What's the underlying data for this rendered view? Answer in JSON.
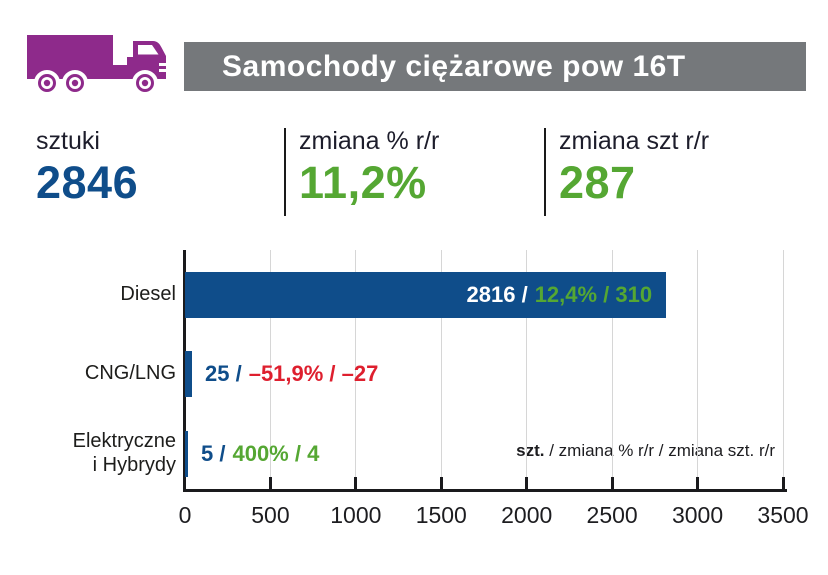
{
  "header": {
    "title": "Samochody ciężarowe pow 16T",
    "bar_color": "#75787b",
    "icon_color": "#8e2a8b"
  },
  "stats": [
    {
      "label": "sztuki",
      "value": "2846",
      "color": "#0f4d8a"
    },
    {
      "label": "zmiana % r/r",
      "value": "11,2%",
      "color": "#55a733"
    },
    {
      "label": "zmiana szt r/r",
      "value": "287",
      "color": "#55a733"
    }
  ],
  "chart_data": {
    "type": "bar",
    "orientation": "horizontal",
    "title": "",
    "xlabel": "",
    "ylabel": "",
    "xlim": [
      0,
      3500
    ],
    "x_ticks": [
      0,
      500,
      1000,
      1500,
      2000,
      2500,
      3000,
      3500
    ],
    "grid": true,
    "categories": [
      "Diesel",
      "CNG/LNG",
      "Elektryczne\ni Hybrydy"
    ],
    "values": [
      2816,
      25,
      5
    ],
    "rows": [
      {
        "category": "Diesel",
        "units": "2816",
        "pct_change": "12,4%",
        "unit_change": "310",
        "trend": "positive",
        "label_position": "inside"
      },
      {
        "category": "CNG/LNG",
        "units": "25",
        "pct_change": "–51,9%",
        "unit_change": "–27",
        "trend": "negative",
        "label_position": "outside"
      },
      {
        "category": "Elektryczne\ni Hybrydy",
        "units": "5",
        "pct_change": "400%",
        "unit_change": "4",
        "trend": "positive",
        "label_position": "outside"
      }
    ],
    "legend_bold_part": "szt.",
    "legend_rest": " / zmiana % r/r / zmiana szt. r/r",
    "bar_color": "#0f4d8a",
    "positive_color": "#55a733",
    "negative_color": "#de1f2e",
    "inside_units_color": "#ffffff",
    "outside_units_color": "#0f4d8a"
  }
}
